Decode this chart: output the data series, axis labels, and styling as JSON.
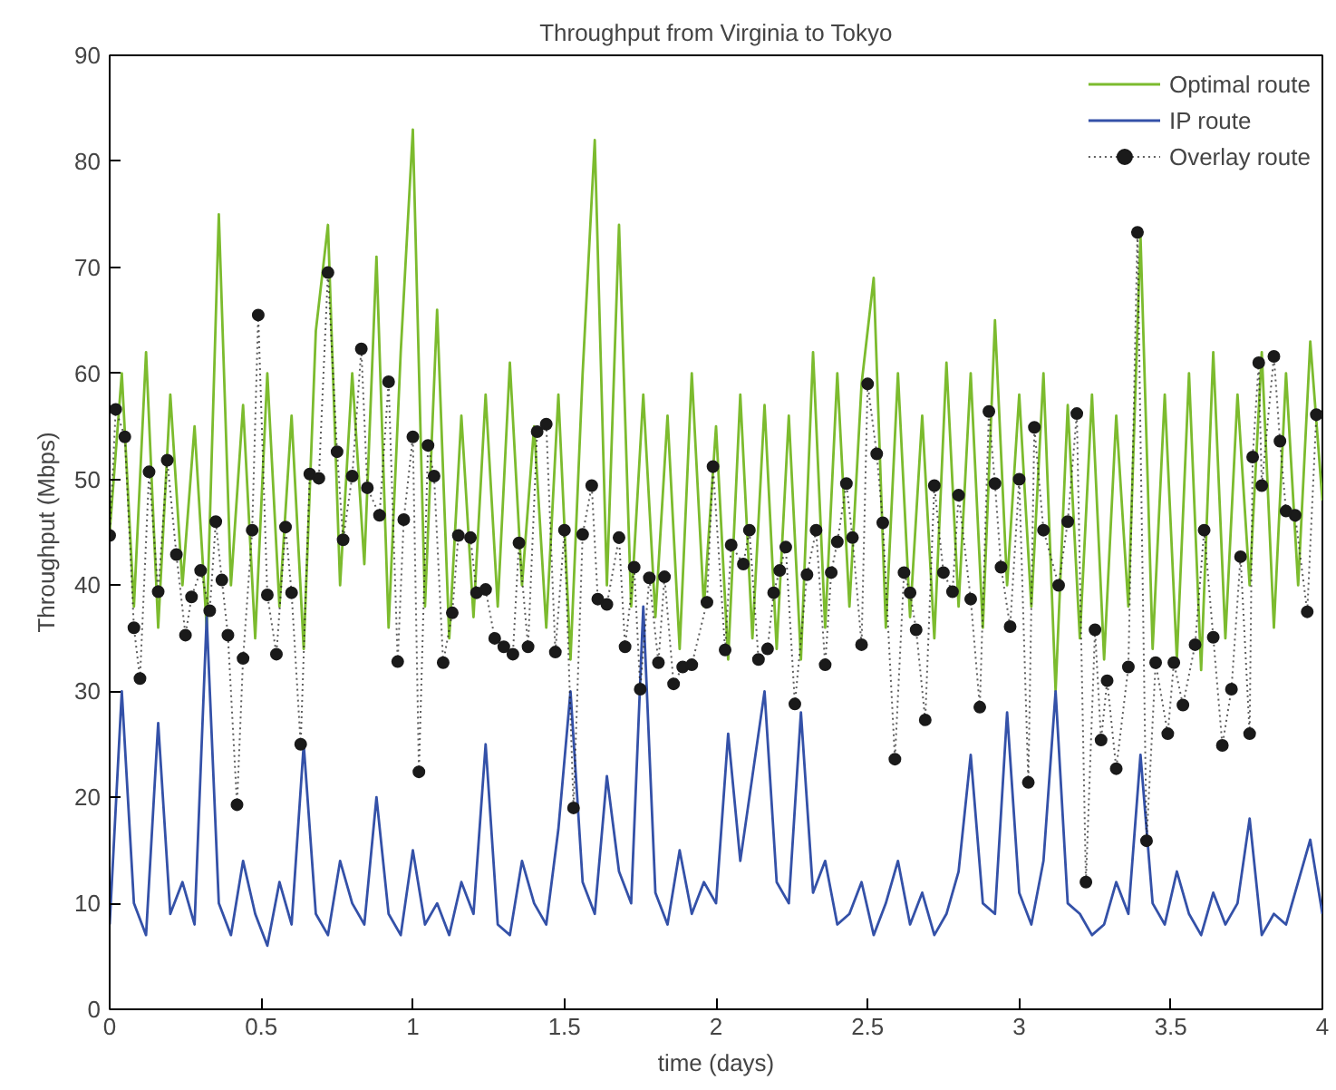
{
  "chart_data": {
    "type": "line",
    "title": "Throughput from Virginia to Tokyo",
    "xlabel": "time (days)",
    "ylabel": "Throughput (Mbps)",
    "xlim": [
      0,
      4
    ],
    "ylim": [
      0,
      90
    ],
    "xticks": [
      0,
      0.5,
      1,
      1.5,
      2,
      2.5,
      3,
      3.5,
      4
    ],
    "yticks": [
      0,
      10,
      20,
      30,
      40,
      50,
      60,
      70,
      80,
      90
    ],
    "grid": false,
    "legend": "top right",
    "x": [
      0,
      0.04,
      0.08,
      0.12,
      0.16,
      0.2,
      0.24,
      0.28,
      0.32,
      0.36,
      0.4,
      0.44,
      0.48,
      0.52,
      0.56,
      0.6,
      0.64,
      0.68,
      0.72,
      0.76,
      0.8,
      0.84,
      0.88,
      0.92,
      0.96,
      1,
      1.04,
      1.08,
      1.12,
      1.16,
      1.2,
      1.24,
      1.28,
      1.32,
      1.36,
      1.4,
      1.44,
      1.48,
      1.52,
      1.56,
      1.6,
      1.64,
      1.68,
      1.72,
      1.76,
      1.8,
      1.84,
      1.88,
      1.92,
      1.96,
      2,
      2.04,
      2.08,
      2.12,
      2.16,
      2.2,
      2.24,
      2.28,
      2.32,
      2.36,
      2.4,
      2.44,
      2.48,
      2.52,
      2.56,
      2.6,
      2.64,
      2.68,
      2.72,
      2.76,
      2.8,
      2.84,
      2.88,
      2.92,
      2.96,
      3,
      3.04,
      3.08,
      3.12,
      3.16,
      3.2,
      3.24,
      3.28,
      3.32,
      3.36,
      3.4,
      3.44,
      3.48,
      3.52,
      3.56,
      3.6,
      3.64,
      3.68,
      3.72,
      3.76,
      3.8,
      3.84,
      3.88,
      3.92,
      3.96,
      4
    ],
    "series": [
      {
        "name": "Optimal route",
        "color": "#7cbb2e",
        "line_style": "solid",
        "marker": "none",
        "values": [
          45,
          60,
          38,
          62,
          36,
          58,
          40,
          55,
          36,
          75,
          40,
          57,
          35,
          60,
          38,
          56,
          34,
          64,
          74,
          40,
          60,
          42,
          71,
          36,
          62,
          83,
          38,
          66,
          35,
          56,
          37,
          58,
          38,
          61,
          40,
          55,
          36,
          58,
          33,
          60,
          82,
          40,
          74,
          38,
          58,
          37,
          56,
          34,
          60,
          38,
          55,
          33,
          58,
          35,
          57,
          34,
          56,
          33,
          62,
          36,
          60,
          38,
          59,
          69,
          36,
          60,
          37,
          56,
          35,
          61,
          38,
          60,
          36,
          65,
          40,
          58,
          38,
          60,
          30,
          57,
          35,
          58,
          33,
          56,
          38,
          73,
          34,
          58,
          33,
          60,
          32,
          62,
          35,
          58,
          40,
          62,
          36,
          60,
          40,
          63,
          48
        ]
      },
      {
        "name": "IP route",
        "color": "#3451a8",
        "line_style": "solid",
        "marker": "none",
        "values": [
          8,
          30,
          10,
          7,
          27,
          9,
          12,
          8,
          37,
          10,
          7,
          14,
          9,
          6,
          12,
          8,
          25,
          9,
          7,
          14,
          10,
          8,
          20,
          9,
          7,
          15,
          8,
          10,
          7,
          12,
          9,
          25,
          8,
          7,
          14,
          10,
          8,
          17,
          30,
          12,
          9,
          22,
          13,
          10,
          38,
          11,
          8,
          15,
          9,
          12,
          10,
          26,
          14,
          22,
          30,
          12,
          10,
          28,
          11,
          14,
          8,
          9,
          12,
          7,
          10,
          14,
          8,
          11,
          7,
          9,
          13,
          24,
          10,
          9,
          28,
          11,
          8,
          14,
          30,
          10,
          9,
          7,
          8,
          12,
          9,
          24,
          10,
          8,
          13,
          9,
          7,
          11,
          8,
          10,
          18,
          7,
          9,
          8,
          12,
          16,
          9
        ]
      },
      {
        "name": "Overlay route",
        "color": "#1a1a1a",
        "line_style": "dotted",
        "marker": "circle",
        "x": [
          0.0,
          0.02,
          0.05,
          0.08,
          0.1,
          0.13,
          0.16,
          0.19,
          0.22,
          0.25,
          0.27,
          0.3,
          0.33,
          0.35,
          0.37,
          0.39,
          0.42,
          0.44,
          0.47,
          0.49,
          0.52,
          0.55,
          0.58,
          0.6,
          0.63,
          0.66,
          0.69,
          0.72,
          0.75,
          0.77,
          0.8,
          0.83,
          0.85,
          0.89,
          0.92,
          0.95,
          0.97,
          1.0,
          1.02,
          1.05,
          1.07,
          1.1,
          1.13,
          1.15,
          1.19,
          1.21,
          1.24,
          1.27,
          1.3,
          1.33,
          1.35,
          1.38,
          1.41,
          1.44,
          1.47,
          1.5,
          1.53,
          1.56,
          1.59,
          1.61,
          1.64,
          1.68,
          1.7,
          1.73,
          1.75,
          1.78,
          1.81,
          1.83,
          1.86,
          1.89,
          1.92,
          1.97,
          1.99,
          2.03,
          2.05,
          2.09,
          2.11,
          2.14,
          2.17,
          2.19,
          2.21,
          2.23,
          2.26,
          2.3,
          2.33,
          2.36,
          2.38,
          2.4,
          2.43,
          2.45,
          2.48,
          2.5,
          2.53,
          2.55,
          2.59,
          2.62,
          2.64,
          2.66,
          2.69,
          2.72,
          2.75,
          2.78,
          2.8,
          2.84,
          2.87,
          2.9,
          2.92,
          2.94,
          2.97,
          3.0,
          3.03,
          3.05,
          3.08,
          3.13,
          3.16,
          3.19,
          3.22,
          3.25,
          3.27,
          3.29,
          3.32,
          3.36,
          3.39,
          3.42,
          3.45,
          3.49,
          3.51,
          3.54,
          3.58,
          3.61,
          3.64,
          3.67,
          3.7,
          3.73,
          3.76,
          3.77,
          3.79,
          3.8,
          3.84,
          3.86,
          3.88,
          3.91,
          3.95,
          3.98
        ],
        "values": [
          44.7,
          56.6,
          54.0,
          36.0,
          31.2,
          50.7,
          39.4,
          51.8,
          42.9,
          35.3,
          38.9,
          41.4,
          37.6,
          46.0,
          40.5,
          35.3,
          19.3,
          33.1,
          45.2,
          65.5,
          39.1,
          33.5,
          45.5,
          39.3,
          25.0,
          50.5,
          50.1,
          69.5,
          52.6,
          44.3,
          50.3,
          62.3,
          49.2,
          46.6,
          59.2,
          32.8,
          46.2,
          54.0,
          22.4,
          53.2,
          50.3,
          32.7,
          37.4,
          44.7,
          44.5,
          39.3,
          39.6,
          35.0,
          34.2,
          33.5,
          44.0,
          34.2,
          54.5,
          55.2,
          33.7,
          45.2,
          19.0,
          44.8,
          49.4,
          38.7,
          38.2,
          44.5,
          34.2,
          41.7,
          30.2,
          40.7,
          32.7,
          40.8,
          30.7,
          32.3,
          32.5,
          38.4,
          51.2,
          33.9,
          43.8,
          42.0,
          45.2,
          33.0,
          34.0,
          39.3,
          41.4,
          43.6,
          28.8,
          41.0,
          45.2,
          32.5,
          41.2,
          44.1,
          49.6,
          44.5,
          34.4,
          59.0,
          52.4,
          45.9,
          23.6,
          41.2,
          39.3,
          35.8,
          27.3,
          49.4,
          41.2,
          39.4,
          48.5,
          38.7,
          28.5,
          56.4,
          49.6,
          41.7,
          36.1,
          50.0,
          21.4,
          54.9,
          45.2,
          40.0,
          46.0,
          56.2,
          12.0,
          35.8,
          25.4,
          31.0,
          22.7,
          32.3,
          73.3,
          15.9,
          32.7,
          26.0,
          32.7,
          28.7,
          34.4,
          45.2,
          35.1,
          24.9,
          30.2,
          42.7,
          26.0,
          52.1,
          61.0,
          49.4,
          61.6,
          53.6,
          47.0,
          46.6,
          37.5,
          56.1
        ]
      }
    ]
  }
}
